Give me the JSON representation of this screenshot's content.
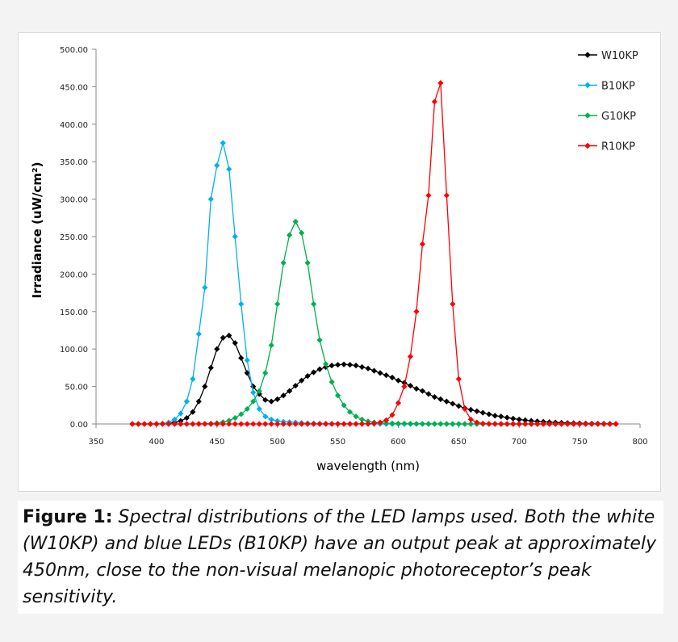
{
  "chart_data": {
    "type": "line",
    "title": "",
    "xlabel": "wavelength (nm)",
    "ylabel": "Irradiance (uW/cm²)",
    "xlim": [
      350,
      800
    ],
    "ylim": [
      0,
      500
    ],
    "xticks": [
      "350",
      "400",
      "450",
      "500",
      "550",
      "600",
      "650",
      "700",
      "750",
      "800"
    ],
    "yticks": [
      "0.00",
      "50.00",
      "100.00",
      "150.00",
      "200.00",
      "250.00",
      "300.00",
      "350.00",
      "400.00",
      "450.00",
      "500.00"
    ],
    "grid": false,
    "legend_position": "top-right",
    "x": [
      380,
      385,
      390,
      395,
      400,
      405,
      410,
      415,
      420,
      425,
      430,
      435,
      440,
      445,
      450,
      455,
      460,
      465,
      470,
      475,
      480,
      485,
      490,
      495,
      500,
      505,
      510,
      515,
      520,
      525,
      530,
      535,
      540,
      545,
      550,
      555,
      560,
      565,
      570,
      575,
      580,
      585,
      590,
      595,
      600,
      605,
      610,
      615,
      620,
      625,
      630,
      635,
      640,
      645,
      650,
      655,
      660,
      665,
      670,
      675,
      680,
      685,
      690,
      695,
      700,
      705,
      710,
      715,
      720,
      725,
      730,
      735,
      740,
      745,
      750,
      755,
      760,
      765,
      770,
      775,
      780
    ],
    "series": [
      {
        "name": "W10KP",
        "color": "#000000",
        "values": [
          0,
          0,
          0,
          0,
          0.1,
          0.3,
          0.8,
          2,
          4,
          8,
          16,
          30,
          50,
          75,
          100,
          115,
          118,
          108,
          88,
          68,
          50,
          40,
          32,
          30,
          33,
          38,
          44,
          51,
          58,
          64,
          69,
          73,
          76,
          78,
          79,
          79.5,
          79,
          78,
          76,
          74,
          71,
          68,
          65,
          62,
          58,
          55,
          51,
          47,
          44,
          40,
          36,
          33,
          30,
          27,
          24,
          21,
          19,
          17,
          15,
          13,
          11,
          10,
          8.5,
          7.2,
          6,
          5,
          4.2,
          3.5,
          2.9,
          2.4,
          2,
          1.6,
          1.3,
          1.1,
          0.9,
          0.7,
          0.6,
          0.5,
          0.4,
          0.3,
          0.2
        ]
      },
      {
        "name": "B10KP",
        "color": "#00b0f0",
        "values": [
          0,
          0,
          0,
          0,
          0.1,
          0.5,
          2,
          6,
          14,
          30,
          60,
          120,
          182,
          300,
          345,
          375,
          340,
          250,
          160,
          85,
          42,
          20,
          10,
          6,
          4,
          3,
          2.5,
          2,
          1.5,
          1,
          0.8,
          0.6,
          0.5,
          0.4,
          0.3,
          0.2,
          0.2,
          0.1,
          0.1,
          0,
          0,
          0,
          0,
          0,
          0,
          0,
          0,
          0,
          0,
          0,
          0,
          0,
          0,
          0,
          0,
          0,
          0,
          0,
          0,
          0,
          0,
          0,
          0,
          0,
          0,
          0,
          0,
          0,
          0,
          0,
          0,
          0,
          0,
          0,
          0,
          0,
          0,
          0,
          0,
          0,
          0
        ]
      },
      {
        "name": "G10KP",
        "color": "#00b050",
        "values": [
          0,
          0,
          0,
          0,
          0,
          0,
          0,
          0,
          0,
          0,
          0,
          0.1,
          0.3,
          0.6,
          1.2,
          2.4,
          4.5,
          8,
          13,
          20,
          30,
          44,
          68,
          105,
          160,
          215,
          252,
          270,
          255,
          215,
          160,
          112,
          80,
          56,
          38,
          25,
          16,
          10,
          6,
          3.5,
          2.2,
          1.5,
          1,
          0.8,
          0.6,
          0.5,
          0.4,
          0.3,
          0.2,
          0.2,
          0.1,
          0.1,
          0.1,
          0,
          0,
          0,
          0,
          0,
          0,
          0,
          0,
          0,
          0,
          0,
          0,
          0,
          0,
          0,
          0,
          0,
          0,
          0,
          0,
          0,
          0,
          0,
          0,
          0,
          0,
          0,
          0
        ]
      },
      {
        "name": "R10KP",
        "color": "#ff0000",
        "values": [
          0,
          0,
          0,
          0,
          0,
          0,
          0,
          0,
          0,
          0,
          0,
          0,
          0,
          0,
          0,
          0,
          0,
          0,
          0,
          0,
          0,
          0,
          0,
          0,
          0,
          0,
          0,
          0,
          0,
          0,
          0,
          0,
          0,
          0,
          0,
          0,
          0,
          0,
          0.1,
          0.3,
          0.8,
          2,
          5,
          12,
          28,
          50,
          90,
          150,
          240,
          305,
          430,
          455,
          305,
          160,
          60,
          20,
          6,
          2,
          0.6,
          0.2,
          0.1,
          0,
          0,
          0,
          0,
          0,
          0,
          0,
          0,
          0,
          0,
          0,
          0,
          0,
          0,
          0,
          0,
          0,
          0,
          0,
          0
        ]
      }
    ]
  },
  "caption": {
    "label": "Figure 1:",
    "text": " Spectral distributions of the LED lamps used.  Both the white (W10KP) and blue LEDs (B10KP) have an output peak at approximately 450nm, close to the non-visual melanopic photoreceptor’s peak sensitivity."
  }
}
